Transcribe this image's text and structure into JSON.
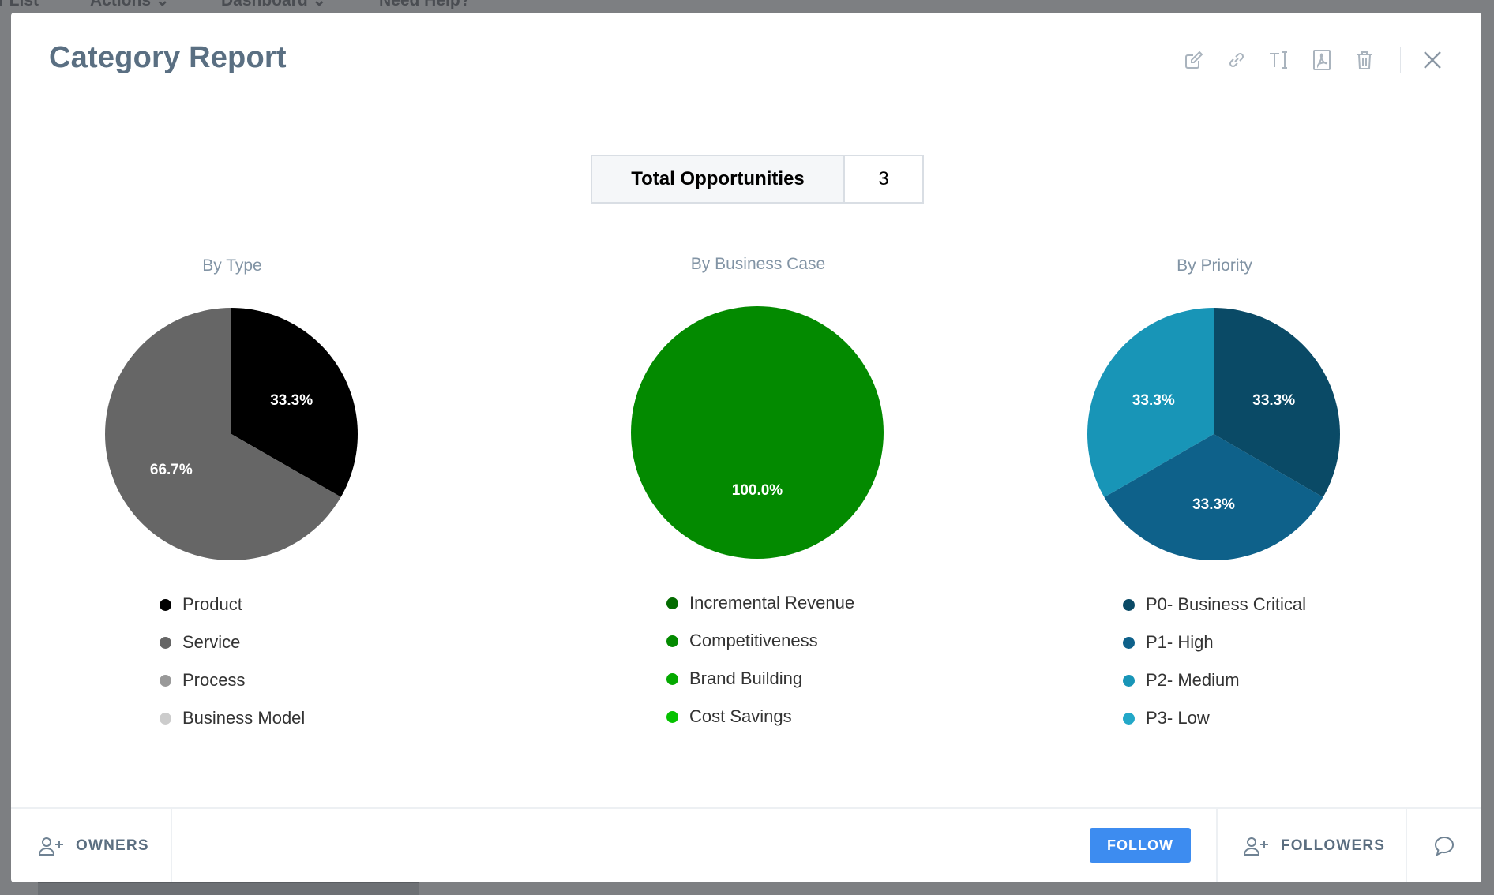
{
  "background_nav": [
    "er List",
    "Actions ⌄",
    "Dashboard ⌄",
    "Need Help?"
  ],
  "modal": {
    "title": "Category Report",
    "toolbar": [
      {
        "name": "edit-icon"
      },
      {
        "name": "link-icon"
      },
      {
        "name": "text-icon"
      },
      {
        "name": "pdf-icon"
      },
      {
        "name": "trash-icon"
      }
    ]
  },
  "total": {
    "label": "Total Opportunities",
    "value": "3"
  },
  "chart_data": [
    {
      "type": "pie",
      "title": "By Type",
      "slices": [
        {
          "label": "Product",
          "value": 33.3,
          "color": "#000000",
          "display": "33.3%"
        },
        {
          "label": "Service",
          "value": 66.7,
          "color": "#666666",
          "display": "66.7%"
        }
      ],
      "legend": [
        {
          "label": "Product",
          "color": "#000000"
        },
        {
          "label": "Service",
          "color": "#666666"
        },
        {
          "label": "Process",
          "color": "#999999"
        },
        {
          "label": "Business Model",
          "color": "#cccccc"
        }
      ]
    },
    {
      "type": "pie",
      "title": "By Business Case",
      "slices": [
        {
          "label": "Competitiveness",
          "value": 100.0,
          "color": "#038a00",
          "display": "100.0%"
        }
      ],
      "legend": [
        {
          "label": "Incremental Revenue",
          "color": "#036b00"
        },
        {
          "label": "Competitiveness",
          "color": "#038a00"
        },
        {
          "label": "Brand Building",
          "color": "#04a900"
        },
        {
          "label": "Cost Savings",
          "color": "#05c200"
        }
      ]
    },
    {
      "type": "pie",
      "title": "By Priority",
      "slices": [
        {
          "label": "P0- Business Critical",
          "value": 33.3,
          "color": "#0a4a66",
          "display": "33.3%"
        },
        {
          "label": "P1- High",
          "value": 33.3,
          "color": "#0e618a",
          "display": "33.3%"
        },
        {
          "label": "P2- Medium",
          "value": 33.3,
          "color": "#1895b7",
          "display": "33.3%"
        }
      ],
      "legend": [
        {
          "label": "P0- Business Critical",
          "color": "#0a4a66"
        },
        {
          "label": "P1- High",
          "color": "#0e618a"
        },
        {
          "label": "P2- Medium",
          "color": "#1895b7"
        },
        {
          "label": "P3- Low",
          "color": "#23a8c8"
        }
      ]
    }
  ],
  "footer": {
    "owners_label": "OWNERS",
    "follow_label": "FOLLOW",
    "followers_label": "FOLLOWERS"
  }
}
